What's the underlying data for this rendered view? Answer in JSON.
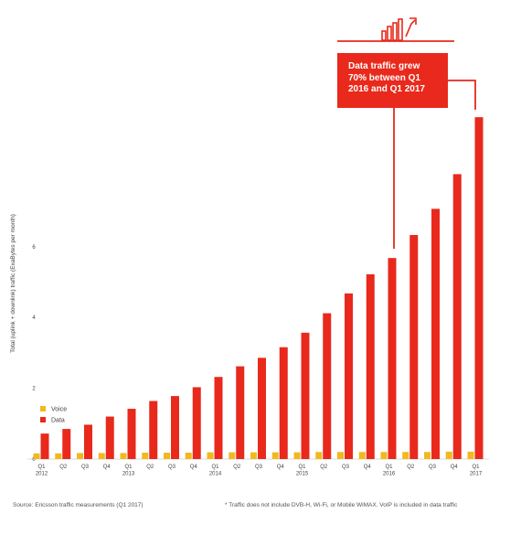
{
  "chart_data": {
    "type": "bar",
    "ylabel": "Total (uplink + downlink) traffic (ExaBytes per month)",
    "ylim": [
      0,
      10
    ],
    "yticks": [
      0,
      2,
      4,
      6
    ],
    "grid": false,
    "legend_position": "bottom-left",
    "categories": [
      "Q1 2012",
      "Q2",
      "Q3",
      "Q4",
      "Q1 2013",
      "Q2",
      "Q3",
      "Q4",
      "Q1 2014",
      "Q2",
      "Q3",
      "Q4",
      "Q1 2015",
      "Q2",
      "Q3",
      "Q4",
      "Q1 2016",
      "Q2",
      "Q3",
      "Q4",
      "Q1 2017"
    ],
    "category_lines": [
      [
        "Q1",
        "2012"
      ],
      [
        "Q2"
      ],
      [
        "Q3"
      ],
      [
        "Q4"
      ],
      [
        "Q1",
        "2013"
      ],
      [
        "Q2"
      ],
      [
        "Q3"
      ],
      [
        "Q4"
      ],
      [
        "Q1",
        "2014"
      ],
      [
        "Q2"
      ],
      [
        "Q3"
      ],
      [
        "Q4"
      ],
      [
        "Q1",
        "2015"
      ],
      [
        "Q2"
      ],
      [
        "Q3"
      ],
      [
        "Q4"
      ],
      [
        "Q1",
        "2016"
      ],
      [
        "Q2"
      ],
      [
        "Q3"
      ],
      [
        "Q4"
      ],
      [
        "Q1",
        "2017"
      ]
    ],
    "series": [
      {
        "name": "Voice",
        "color": "#f2b81e",
        "values": [
          0.16,
          0.16,
          0.17,
          0.17,
          0.17,
          0.18,
          0.18,
          0.18,
          0.19,
          0.19,
          0.19,
          0.19,
          0.19,
          0.2,
          0.2,
          0.2,
          0.2,
          0.2,
          0.2,
          0.21,
          0.21
        ]
      },
      {
        "name": "Data",
        "color": "#e8291c",
        "values": [
          0.72,
          0.85,
          0.97,
          1.2,
          1.42,
          1.64,
          1.78,
          2.03,
          2.32,
          2.62,
          2.86,
          3.16,
          3.57,
          4.12,
          4.68,
          5.22,
          5.68,
          6.33,
          7.07,
          8.05,
          9.66
        ]
      }
    ],
    "annotation": {
      "text_lines": [
        "Data traffic grew",
        "70% between Q1",
        "2016 and Q1 2017"
      ]
    }
  },
  "footer": {
    "source": "Source: Ericsson traffic measurements (Q1 2017)",
    "note": "* Traffic does not include DVB-H, Wi-Fi, or Mobile WiMAX. VoIP is included in data traffic"
  },
  "colors": {
    "accent": "#e8291c",
    "voice": "#f2b81e",
    "text": "#444444"
  },
  "icons": {
    "callout_icon": "growth-chart-arrow-icon"
  }
}
